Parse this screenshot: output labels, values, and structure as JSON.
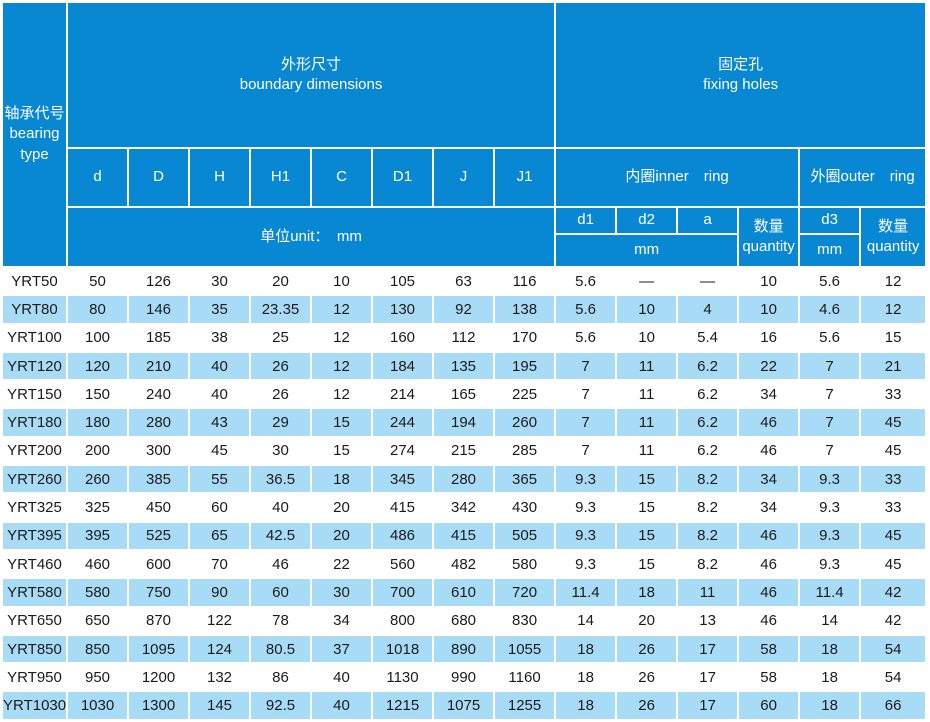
{
  "colors": {
    "header_blue": "#0888d3",
    "row_alt_blue": "#a8dcf6",
    "grid_white": "#ffffff",
    "header_text": "#ffffff",
    "body_text": "#1b1b1b"
  },
  "table": {
    "header": {
      "bearing_type": "轴承代号\nbearing\ntype",
      "boundary_dimensions": "外形尺寸\nboundary dimensions",
      "fixing_holes": "固定孔\nfixing holes",
      "dimension_columns": [
        "d",
        "D",
        "H",
        "H1",
        "C",
        "D1",
        "J",
        "J1"
      ],
      "unit_label": "单位unit：　mm",
      "inner_ring": "内圈inner　ring",
      "outer_ring": "外圈outer　ring",
      "inner_hole_columns": [
        "d1",
        "d2",
        "a"
      ],
      "inner_mm": "mm",
      "inner_quantity": "数量\nquantity",
      "outer_d3": "d3",
      "outer_mm": "mm",
      "outer_quantity": "数量\nquantity"
    },
    "rows": [
      {
        "type": "YRT50",
        "values": [
          "50",
          "126",
          "30",
          "20",
          "10",
          "105",
          "63",
          "116",
          "5.6",
          "—",
          "—",
          "10",
          "5.6",
          "12"
        ]
      },
      {
        "type": "YRT80",
        "values": [
          "80",
          "146",
          "35",
          "23.35",
          "12",
          "130",
          "92",
          "138",
          "5.6",
          "10",
          "4",
          "10",
          "4.6",
          "12"
        ]
      },
      {
        "type": "YRT100",
        "values": [
          "100",
          "185",
          "38",
          "25",
          "12",
          "160",
          "112",
          "170",
          "5.6",
          "10",
          "5.4",
          "16",
          "5.6",
          "15"
        ]
      },
      {
        "type": "YRT120",
        "values": [
          "120",
          "210",
          "40",
          "26",
          "12",
          "184",
          "135",
          "195",
          "7",
          "11",
          "6.2",
          "22",
          "7",
          "21"
        ]
      },
      {
        "type": "YRT150",
        "values": [
          "150",
          "240",
          "40",
          "26",
          "12",
          "214",
          "165",
          "225",
          "7",
          "11",
          "6.2",
          "34",
          "7",
          "33"
        ]
      },
      {
        "type": "YRT180",
        "values": [
          "180",
          "280",
          "43",
          "29",
          "15",
          "244",
          "194",
          "260",
          "7",
          "11",
          "6.2",
          "46",
          "7",
          "45"
        ]
      },
      {
        "type": "YRT200",
        "values": [
          "200",
          "300",
          "45",
          "30",
          "15",
          "274",
          "215",
          "285",
          "7",
          "11",
          "6.2",
          "46",
          "7",
          "45"
        ]
      },
      {
        "type": "YRT260",
        "values": [
          "260",
          "385",
          "55",
          "36.5",
          "18",
          "345",
          "280",
          "365",
          "9.3",
          "15",
          "8.2",
          "34",
          "9.3",
          "33"
        ]
      },
      {
        "type": "YRT325",
        "values": [
          "325",
          "450",
          "60",
          "40",
          "20",
          "415",
          "342",
          "430",
          "9.3",
          "15",
          "8.2",
          "34",
          "9.3",
          "33"
        ]
      },
      {
        "type": "YRT395",
        "values": [
          "395",
          "525",
          "65",
          "42.5",
          "20",
          "486",
          "415",
          "505",
          "9.3",
          "15",
          "8.2",
          "46",
          "9.3",
          "45"
        ]
      },
      {
        "type": "YRT460",
        "values": [
          "460",
          "600",
          "70",
          "46",
          "22",
          "560",
          "482",
          "580",
          "9.3",
          "15",
          "8.2",
          "46",
          "9.3",
          "45"
        ]
      },
      {
        "type": "YRT580",
        "values": [
          "580",
          "750",
          "90",
          "60",
          "30",
          "700",
          "610",
          "720",
          "11.4",
          "18",
          "11",
          "46",
          "11.4",
          "42"
        ]
      },
      {
        "type": "YRT650",
        "values": [
          "650",
          "870",
          "122",
          "78",
          "34",
          "800",
          "680",
          "830",
          "14",
          "20",
          "13",
          "46",
          "14",
          "42"
        ]
      },
      {
        "type": "YRT850",
        "values": [
          "850",
          "1095",
          "124",
          "80.5",
          "37",
          "1018",
          "890",
          "1055",
          "18",
          "26",
          "17",
          "58",
          "18",
          "54"
        ]
      },
      {
        "type": "YRT950",
        "values": [
          "950",
          "1200",
          "132",
          "86",
          "40",
          "1130",
          "990",
          "1160",
          "18",
          "26",
          "17",
          "58",
          "18",
          "54"
        ]
      },
      {
        "type": "YRT1030",
        "values": [
          "1030",
          "1300",
          "145",
          "92.5",
          "40",
          "1215",
          "1075",
          "1255",
          "18",
          "26",
          "17",
          "60",
          "18",
          "66"
        ]
      }
    ]
  }
}
